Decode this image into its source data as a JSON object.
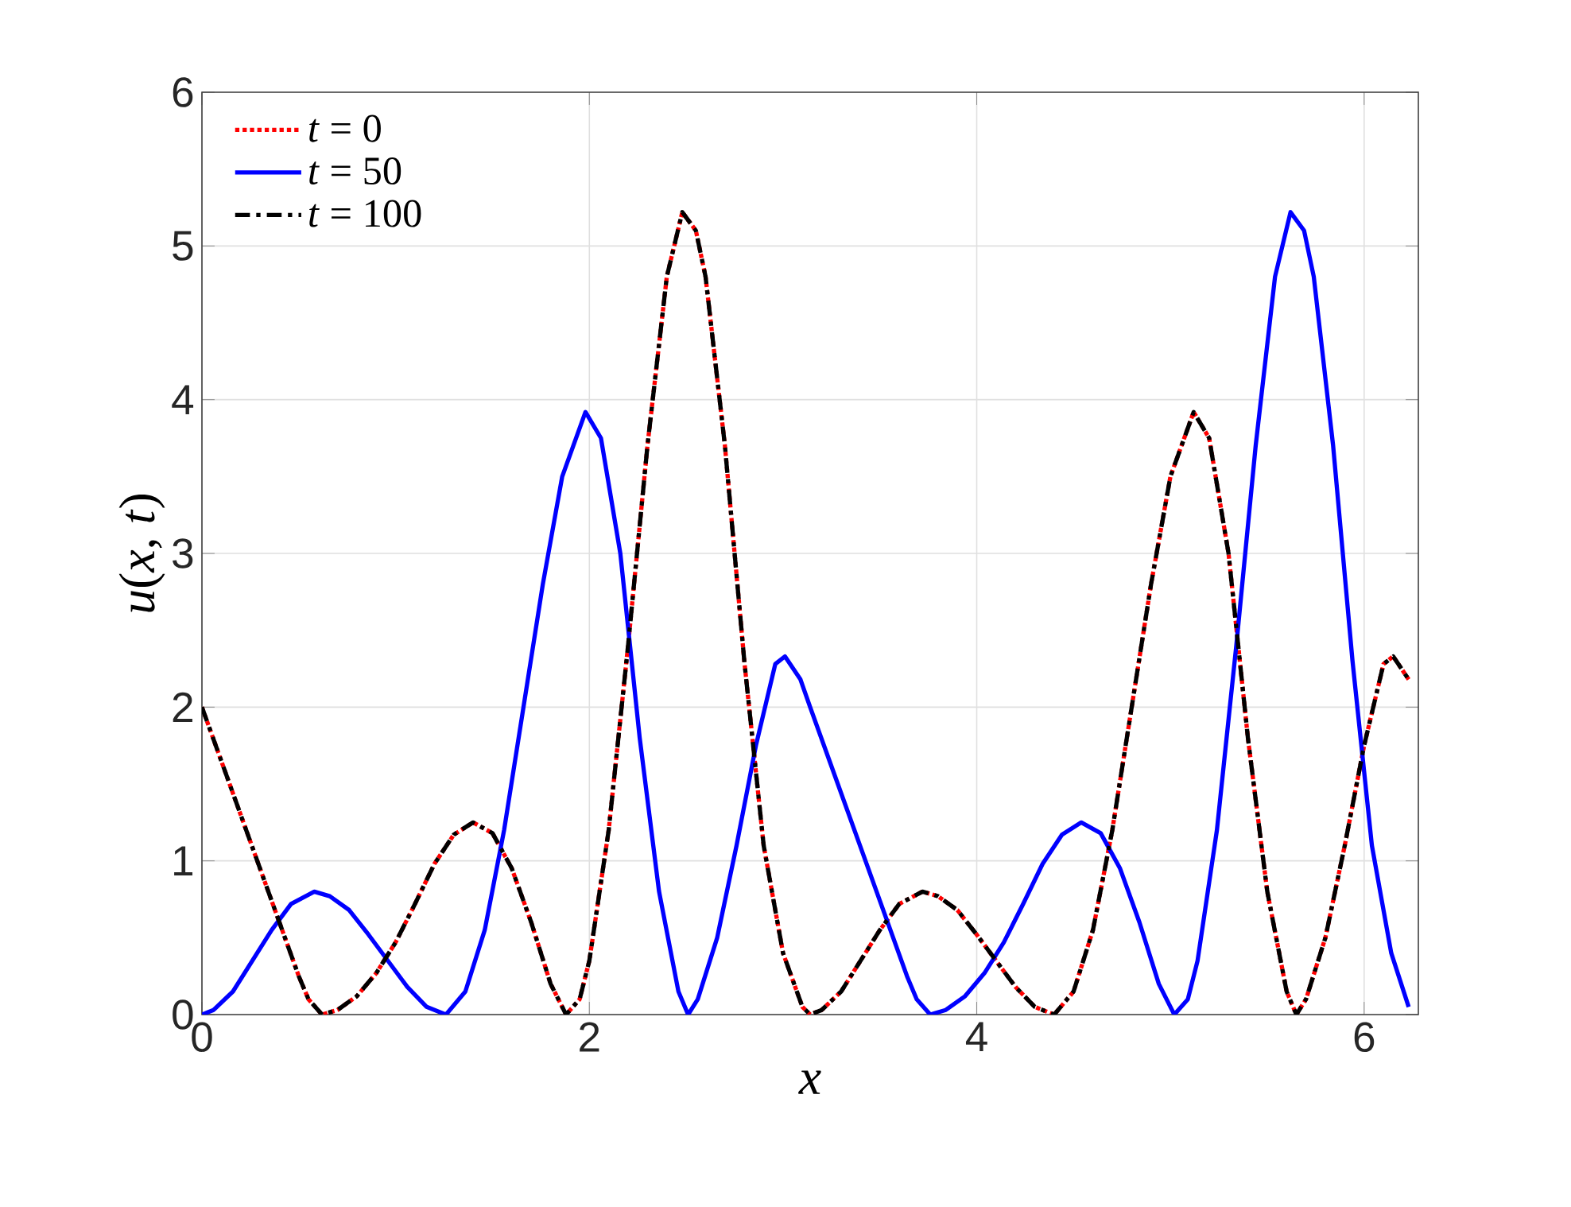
{
  "chart_data": {
    "type": "line",
    "xlabel": "x",
    "ylabel": "*u*(*x*, *t*)",
    "xlim": [
      0,
      6.28
    ],
    "ylim": [
      0,
      6
    ],
    "xticks": [
      0,
      2,
      4,
      6
    ],
    "yticks": [
      0,
      1,
      2,
      3,
      4,
      5,
      6
    ],
    "grid": true,
    "legend": "top left",
    "marker": "none",
    "series": [
      {
        "name": "*t* = 0",
        "color": "#ff0000",
        "line_style": "dotted",
        "x": [
          0,
          0.1,
          0.2,
          0.3,
          0.4,
          0.5,
          0.55,
          0.62,
          0.7,
          0.8,
          0.9,
          1.0,
          1.1,
          1.2,
          1.3,
          1.4,
          1.5,
          1.6,
          1.7,
          1.8,
          1.88,
          1.95,
          2.0,
          2.1,
          2.2,
          2.3,
          2.4,
          2.48,
          2.55,
          2.6,
          2.7,
          2.8,
          2.9,
          3.0,
          3.1,
          3.14,
          3.2,
          3.3,
          3.4,
          3.5,
          3.6,
          3.72,
          3.8,
          3.9,
          4.0,
          4.1,
          4.2,
          4.3,
          4.4,
          4.5,
          4.6,
          4.7,
          4.8,
          4.9,
          5.0,
          5.12,
          5.2,
          5.3,
          5.4,
          5.5,
          5.6,
          5.65,
          5.7,
          5.8,
          5.9,
          6.0,
          6.1,
          6.15,
          6.23
        ],
        "values": [
          2.0,
          1.65,
          1.3,
          0.95,
          0.6,
          0.25,
          0.1,
          0.0,
          0.03,
          0.12,
          0.27,
          0.47,
          0.72,
          0.98,
          1.17,
          1.25,
          1.18,
          0.95,
          0.6,
          0.2,
          0.0,
          0.1,
          0.35,
          1.2,
          2.4,
          3.7,
          4.8,
          5.22,
          5.1,
          4.8,
          3.7,
          2.3,
          1.1,
          0.4,
          0.05,
          0.0,
          0.03,
          0.15,
          0.35,
          0.55,
          0.72,
          0.8,
          0.77,
          0.68,
          0.52,
          0.35,
          0.18,
          0.05,
          0.0,
          0.15,
          0.55,
          1.2,
          2.0,
          2.8,
          3.5,
          3.92,
          3.75,
          3.0,
          1.8,
          0.8,
          0.15,
          0.0,
          0.1,
          0.5,
          1.1,
          1.75,
          2.28,
          2.33,
          2.18
        ]
      },
      {
        "name": "*t* = 50",
        "color": "#0000ff",
        "line_style": "solid",
        "x": [
          0,
          0.06,
          0.16,
          0.26,
          0.36,
          0.46,
          0.58,
          0.66,
          0.76,
          0.86,
          0.96,
          1.06,
          1.16,
          1.26,
          1.36,
          1.46,
          1.56,
          1.66,
          1.76,
          1.86,
          1.98,
          2.06,
          2.16,
          2.26,
          2.36,
          2.46,
          2.51,
          2.56,
          2.66,
          2.76,
          2.86,
          2.96,
          3.01,
          3.09,
          3.14,
          3.24,
          3.34,
          3.44,
          3.54,
          3.64,
          3.69,
          3.76,
          3.84,
          3.94,
          4.04,
          4.14,
          4.24,
          4.34,
          4.44,
          4.54,
          4.64,
          4.74,
          4.84,
          4.94,
          5.02,
          5.09,
          5.14,
          5.24,
          5.34,
          5.44,
          5.54,
          5.62,
          5.69,
          5.74,
          5.84,
          5.94,
          6.04,
          6.14,
          6.23
        ],
        "values": [
          0.0,
          0.03,
          0.15,
          0.35,
          0.55,
          0.72,
          0.8,
          0.77,
          0.68,
          0.52,
          0.35,
          0.18,
          0.05,
          0.0,
          0.15,
          0.55,
          1.2,
          2.0,
          2.8,
          3.5,
          3.92,
          3.75,
          3.0,
          1.8,
          0.8,
          0.15,
          0.0,
          0.1,
          0.5,
          1.1,
          1.75,
          2.28,
          2.33,
          2.18,
          2.0,
          1.65,
          1.3,
          0.95,
          0.6,
          0.25,
          0.1,
          0.0,
          0.03,
          0.12,
          0.27,
          0.47,
          0.72,
          0.98,
          1.17,
          1.25,
          1.18,
          0.95,
          0.6,
          0.2,
          0.0,
          0.1,
          0.35,
          1.2,
          2.4,
          3.7,
          4.8,
          5.22,
          5.1,
          4.8,
          3.7,
          2.3,
          1.1,
          0.4,
          0.05
        ]
      },
      {
        "name": "*t* = 100",
        "color": "#000000",
        "line_style": "dashed",
        "x": [
          0,
          0.1,
          0.2,
          0.3,
          0.4,
          0.5,
          0.55,
          0.62,
          0.7,
          0.8,
          0.9,
          1.0,
          1.1,
          1.2,
          1.3,
          1.4,
          1.5,
          1.6,
          1.7,
          1.8,
          1.88,
          1.95,
          2.0,
          2.1,
          2.2,
          2.3,
          2.4,
          2.48,
          2.55,
          2.6,
          2.7,
          2.8,
          2.9,
          3.0,
          3.1,
          3.14,
          3.2,
          3.3,
          3.4,
          3.5,
          3.6,
          3.72,
          3.8,
          3.9,
          4.0,
          4.1,
          4.2,
          4.3,
          4.4,
          4.5,
          4.6,
          4.7,
          4.8,
          4.9,
          5.0,
          5.12,
          5.2,
          5.3,
          5.4,
          5.5,
          5.6,
          5.65,
          5.7,
          5.8,
          5.9,
          6.0,
          6.1,
          6.15,
          6.23
        ],
        "values": [
          2.0,
          1.65,
          1.3,
          0.95,
          0.6,
          0.25,
          0.1,
          0.0,
          0.03,
          0.12,
          0.27,
          0.47,
          0.72,
          0.98,
          1.17,
          1.25,
          1.18,
          0.95,
          0.6,
          0.2,
          0.0,
          0.1,
          0.35,
          1.2,
          2.4,
          3.7,
          4.8,
          5.22,
          5.1,
          4.8,
          3.7,
          2.3,
          1.1,
          0.4,
          0.05,
          0.0,
          0.03,
          0.15,
          0.35,
          0.55,
          0.72,
          0.8,
          0.77,
          0.68,
          0.52,
          0.35,
          0.18,
          0.05,
          0.0,
          0.15,
          0.55,
          1.2,
          2.0,
          2.8,
          3.5,
          3.92,
          3.75,
          3.0,
          1.8,
          0.8,
          0.15,
          0.0,
          0.1,
          0.5,
          1.1,
          1.75,
          2.28,
          2.33,
          2.18
        ]
      }
    ]
  }
}
